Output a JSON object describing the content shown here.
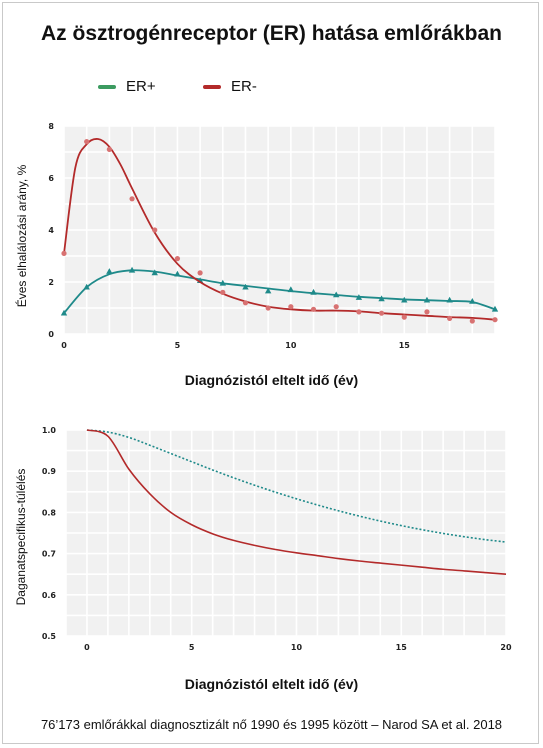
{
  "title": "Az ösztrogénreceptor (ER) hatása emlőrákban",
  "legend": [
    {
      "label": "ER+",
      "color": "#3c9b60"
    },
    {
      "label": "ER-",
      "color": "#b32a2a"
    }
  ],
  "footer": "76’173 emlőrákkal diagnosztizált nő 1990 és 1995 között – Narod SA et al. 2018",
  "chart_data": [
    {
      "type": "line",
      "xlabel": "Diagnózistól eltelt idő (év)",
      "ylabel": "Éves elhalálozási arány, %",
      "xlim": [
        0,
        19
      ],
      "ylim": [
        0,
        8
      ],
      "xticks": [
        0,
        5,
        10,
        15
      ],
      "yticks": [
        0,
        2,
        4,
        6,
        8
      ],
      "grid": true,
      "series": [
        {
          "name": "ER+",
          "color": "#1f8a8a",
          "marker": "triangle",
          "points_x": [
            0,
            1,
            2,
            3,
            4,
            5,
            6,
            7,
            8,
            9,
            10,
            11,
            12,
            13,
            14,
            15,
            16,
            17,
            18,
            19
          ],
          "points_y": [
            0.8,
            1.8,
            2.4,
            2.45,
            2.35,
            2.3,
            2.05,
            1.95,
            1.8,
            1.65,
            1.7,
            1.6,
            1.5,
            1.4,
            1.35,
            1.3,
            1.3,
            1.3,
            1.25,
            0.95
          ],
          "curve_x": [
            0,
            1,
            2,
            3,
            4,
            5,
            6,
            7,
            8,
            9,
            10,
            11,
            12,
            13,
            14,
            15,
            16,
            17,
            18,
            19
          ],
          "curve_y": [
            0.8,
            1.8,
            2.3,
            2.45,
            2.4,
            2.25,
            2.1,
            1.95,
            1.85,
            1.75,
            1.65,
            1.57,
            1.5,
            1.43,
            1.38,
            1.33,
            1.3,
            1.27,
            1.23,
            0.95
          ]
        },
        {
          "name": "ER-",
          "color": "#b32a2a",
          "marker": "circle",
          "points_x": [
            0,
            1,
            2,
            3,
            4,
            5,
            6,
            7,
            8,
            9,
            10,
            11,
            12,
            13,
            14,
            15,
            16,
            17,
            18,
            19
          ],
          "points_y": [
            3.1,
            7.4,
            7.1,
            5.2,
            4.0,
            2.9,
            2.35,
            1.6,
            1.2,
            1.0,
            1.05,
            0.95,
            1.05,
            0.85,
            0.8,
            0.65,
            0.85,
            0.6,
            0.5,
            0.55
          ],
          "curve_x": [
            0,
            0.5,
            1,
            1.5,
            2,
            2.5,
            3,
            4,
            5,
            6,
            7,
            8,
            9,
            10,
            11,
            12,
            13,
            14,
            15,
            16,
            17,
            18,
            19
          ],
          "curve_y": [
            3.1,
            6.4,
            7.3,
            7.5,
            7.2,
            6.5,
            5.6,
            3.9,
            2.7,
            2.0,
            1.55,
            1.25,
            1.05,
            0.95,
            0.9,
            0.9,
            0.87,
            0.8,
            0.75,
            0.7,
            0.65,
            0.62,
            0.55
          ]
        }
      ]
    },
    {
      "type": "line",
      "xlabel": "Diagnózistól eltelt idő (év)",
      "ylabel": "Daganatspecifikus-túlélés",
      "xlim": [
        -1,
        20
      ],
      "ylim": [
        0.5,
        1.0
      ],
      "xticks": [
        0,
        5,
        10,
        15,
        20
      ],
      "yticks": [
        0.5,
        0.6,
        0.7,
        0.8,
        0.9,
        1.0
      ],
      "grid": true,
      "series": [
        {
          "name": "ER+",
          "color": "#1f8a8a",
          "style": "dotted",
          "x": [
            0,
            1,
            2,
            3,
            4,
            5,
            6,
            7,
            8,
            9,
            10,
            11,
            12,
            13,
            14,
            15,
            16,
            17,
            18,
            19,
            20
          ],
          "y": [
            1.0,
            0.995,
            0.982,
            0.963,
            0.943,
            0.923,
            0.903,
            0.884,
            0.866,
            0.849,
            0.833,
            0.818,
            0.804,
            0.791,
            0.779,
            0.768,
            0.758,
            0.749,
            0.741,
            0.734,
            0.728
          ]
        },
        {
          "name": "ER-",
          "color": "#b32a2a",
          "style": "solid",
          "x": [
            0,
            1,
            2,
            3,
            4,
            5,
            6,
            7,
            8,
            9,
            10,
            11,
            12,
            13,
            14,
            15,
            16,
            17,
            18,
            19,
            20
          ],
          "y": [
            1.0,
            0.985,
            0.905,
            0.845,
            0.8,
            0.77,
            0.748,
            0.732,
            0.72,
            0.71,
            0.702,
            0.695,
            0.688,
            0.682,
            0.677,
            0.672,
            0.667,
            0.662,
            0.658,
            0.654,
            0.65
          ]
        }
      ]
    }
  ]
}
